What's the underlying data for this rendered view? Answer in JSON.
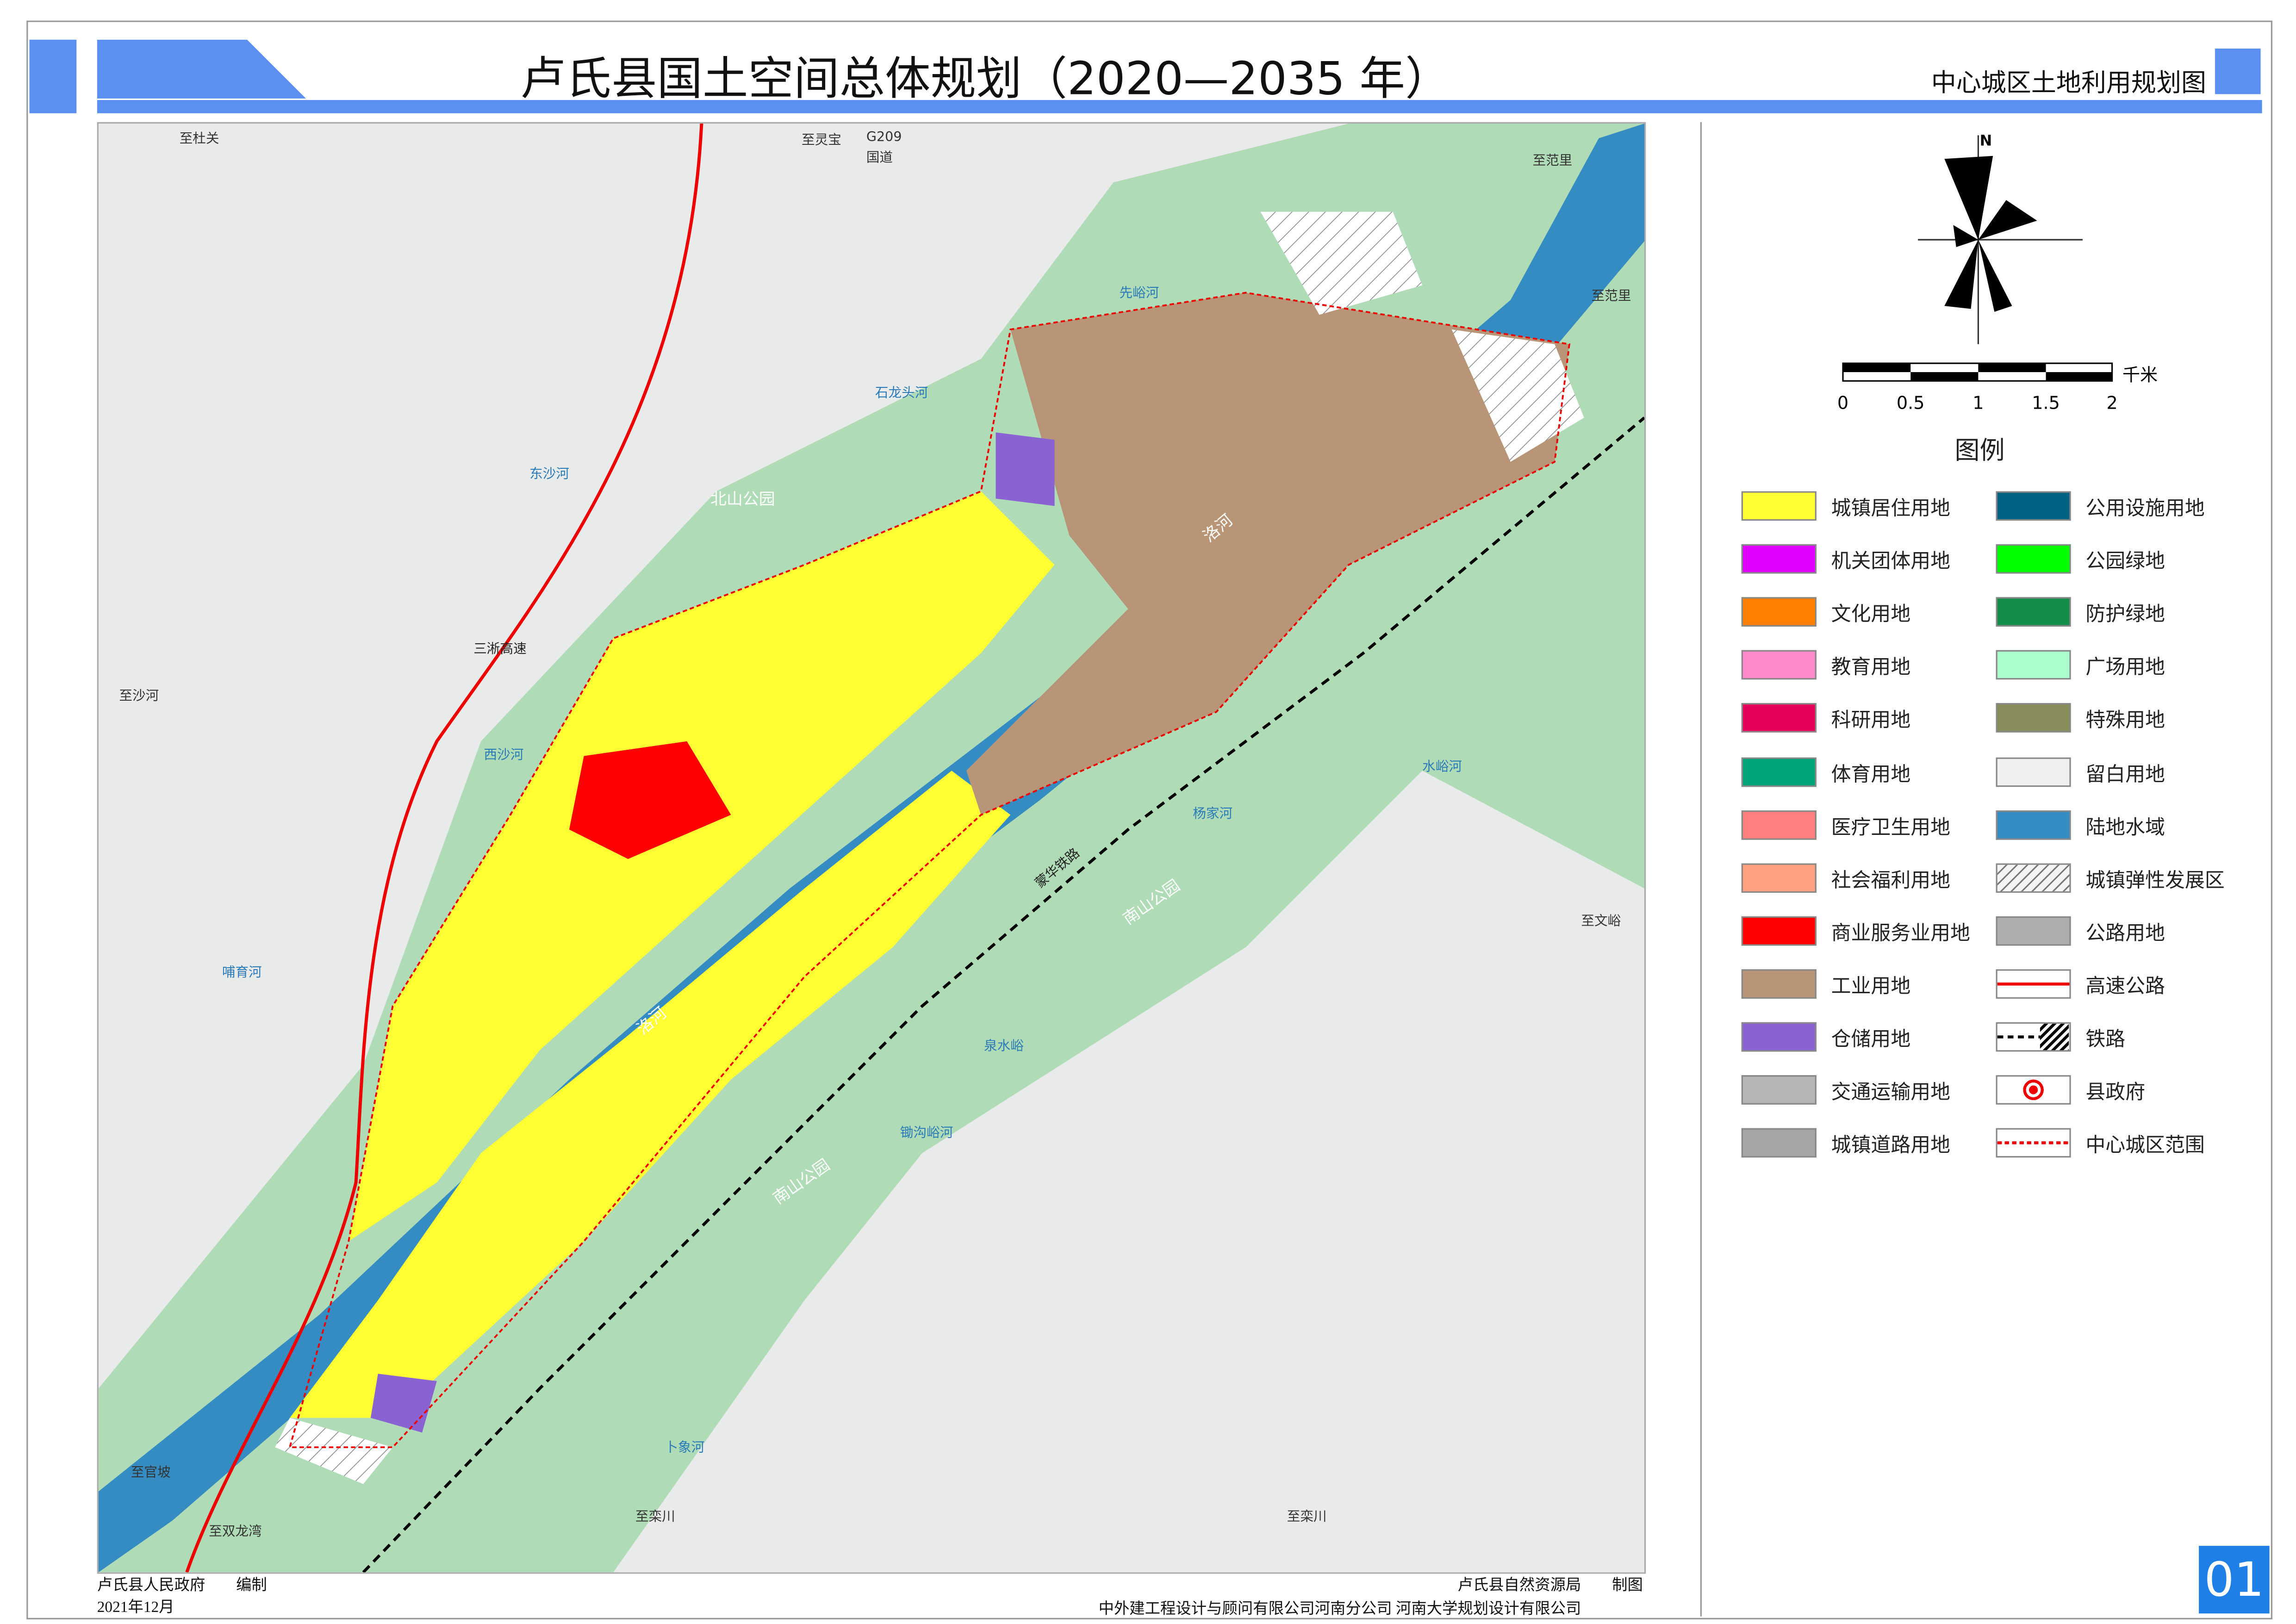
{
  "header": {
    "title": "卢氏县国土空间总体规划（2020—2035 年）",
    "subtitle": "中心城区土地利用规划图",
    "accent": "#5b8ff0"
  },
  "map": {
    "labels": {
      "to_dujiaguan": "至杜关",
      "to_lingbao": "至灵宝",
      "g209": "G209",
      "guodao": "国道",
      "to_fanli_top": "至范里",
      "to_fanli": "至范里",
      "xianyu_river": "先峪河",
      "shilongtou_river": "石龙头河",
      "dongsha_river": "东沙河",
      "beishan_park": "北山公园",
      "sanxi_expressway": "三淅高速",
      "to_shahe": "至沙河",
      "xisha_river": "西沙河",
      "luo_river_1": "洛河",
      "luo_river_2": "洛河",
      "shuiyu_river": "水峪河",
      "yangjia_river": "杨家河",
      "nanshan_park_1": "南山公园",
      "nanshan_park_2": "南山公园",
      "menghua_railway": "蒙华铁路",
      "to_wenyu": "至文峪",
      "buyu_river": "哺育河",
      "quanshuiyu": "泉水峪",
      "chugouyu_river": "锄沟峪河",
      "xiaxiang_river": "卜象河",
      "to_guanpo": "至官坡",
      "to_shuanglongwan": "至双龙湾",
      "to_luanchuan_1": "至栾川",
      "to_luanchuan_2": "至栾川"
    }
  },
  "scale": {
    "unit": "千米",
    "ticks": [
      "0",
      "0.5",
      "1",
      "1.5",
      "2"
    ]
  },
  "north": {
    "label": "N"
  },
  "legend": {
    "title": "图例",
    "left": [
      {
        "label": "城镇居住用地",
        "color": "#ffff33"
      },
      {
        "label": "机关团体用地",
        "color": "#e000ff"
      },
      {
        "label": "文化用地",
        "color": "#ff8000"
      },
      {
        "label": "教育用地",
        "color": "#ff88c8"
      },
      {
        "label": "科研用地",
        "color": "#e6005c"
      },
      {
        "label": "体育用地",
        "color": "#00a57a"
      },
      {
        "label": "医疗卫生用地",
        "color": "#ff7f7f"
      },
      {
        "label": "社会福利用地",
        "color": "#ffa080"
      },
      {
        "label": "商业服务业用地",
        "color": "#ff0000"
      },
      {
        "label": "工业用地",
        "color": "#b89576"
      },
      {
        "label": "仓储用地",
        "color": "#8a63d2"
      },
      {
        "label": "交通运输用地",
        "color": "#b5b5b5"
      },
      {
        "label": "城镇道路用地",
        "color": "#a5a5a5"
      }
    ],
    "right": [
      {
        "label": "公用设施用地",
        "color": "#006384"
      },
      {
        "label": "公园绿地",
        "color": "#00ff00"
      },
      {
        "label": "防护绿地",
        "color": "#148c4a"
      },
      {
        "label": "广场用地",
        "color": "#aaffcc"
      },
      {
        "label": "特殊用地",
        "color": "#878c5a"
      },
      {
        "label": "留白用地",
        "color": "#f0f0f0"
      },
      {
        "label": "陆地水域",
        "color": "#358cc2"
      },
      {
        "label": "城镇弹性发展区",
        "color": "hatch"
      },
      {
        "label": "公路用地",
        "color": "#adadad"
      },
      {
        "label": "高速公路",
        "color": "redline"
      },
      {
        "label": "铁路",
        "color": "railway"
      },
      {
        "label": "县政府",
        "color": "gov"
      },
      {
        "label": "中心城区范围",
        "color": "dashred"
      }
    ]
  },
  "footer": {
    "compiler": "卢氏县人民政府　　编制",
    "date": "2021年12月",
    "drafter": "卢氏县自然资源局　　制图",
    "designers": "中外建工程设计与顾问有限公司河南分公司 河南大学规划设计有限公司",
    "page_number": "01"
  }
}
